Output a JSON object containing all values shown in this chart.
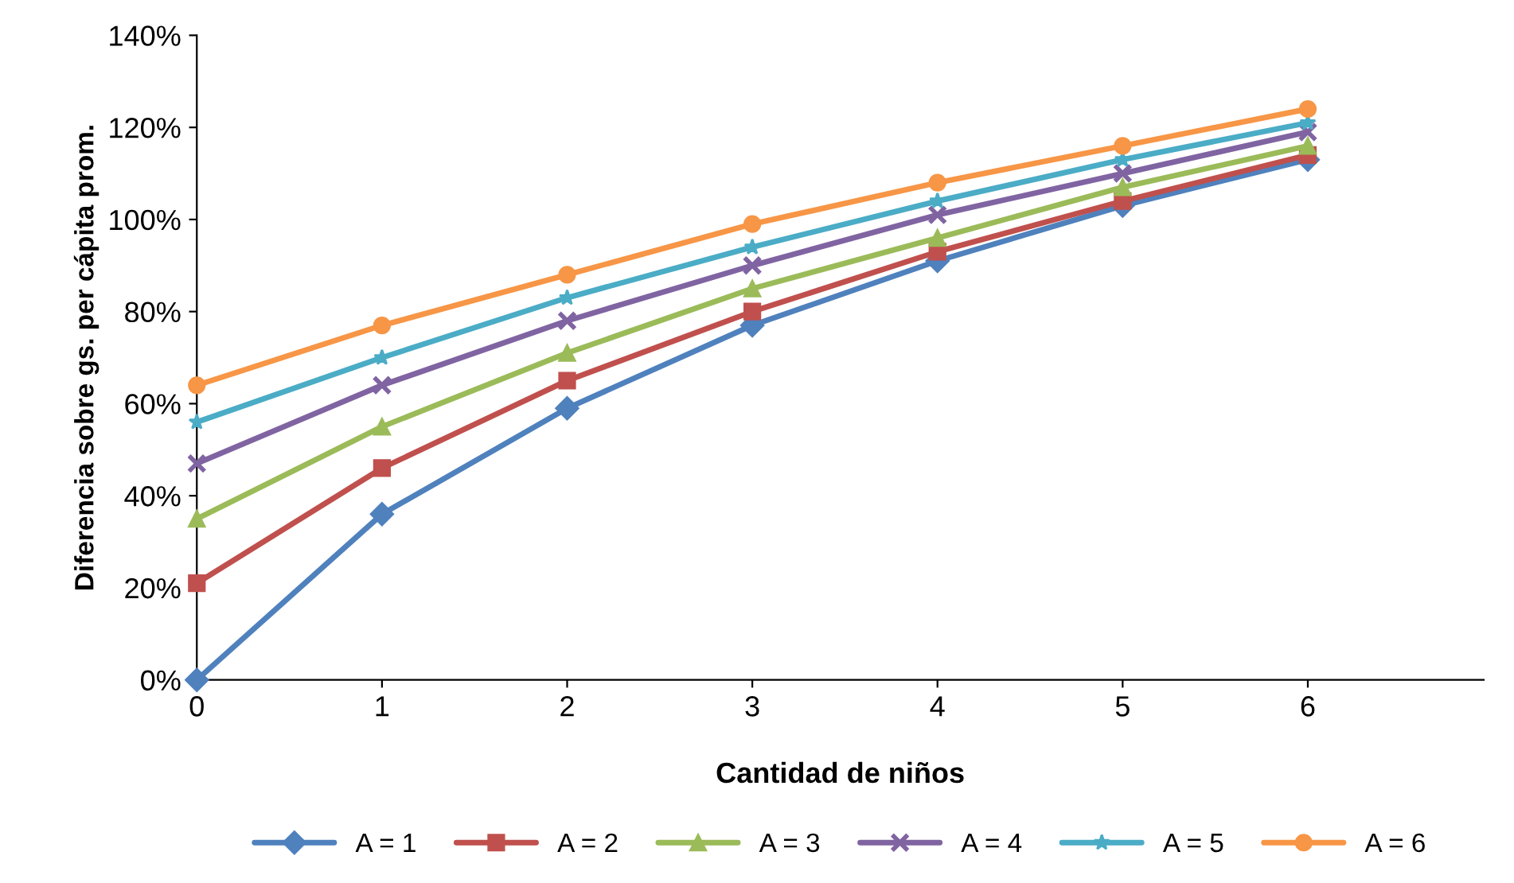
{
  "chart_data": {
    "type": "line",
    "xlabel": "Cantidad de niños",
    "ylabel": "Diferencia sobre gs. per cápita prom.",
    "x": [
      0,
      1,
      2,
      3,
      4,
      5,
      6
    ],
    "xlim": [
      0,
      6.95
    ],
    "xticks": [
      0,
      1,
      2,
      3,
      4,
      5,
      6
    ],
    "ylim": [
      0,
      140
    ],
    "yticks": [
      {
        "value": 0,
        "label": "0%"
      },
      {
        "value": 20,
        "label": "20%"
      },
      {
        "value": 40,
        "label": "40%"
      },
      {
        "value": 60,
        "label": "60%"
      },
      {
        "value": 80,
        "label": "80%"
      },
      {
        "value": 100,
        "label": "100%"
      },
      {
        "value": 120,
        "label": "120%"
      },
      {
        "value": 140,
        "label": "140%"
      }
    ],
    "grid": false,
    "legend": "bottom",
    "line_style": "solid",
    "series": [
      {
        "name": "A = 1",
        "color": "#4f81bd",
        "marker": "diamond",
        "values": [
          0,
          36,
          59,
          77,
          91,
          103,
          113
        ]
      },
      {
        "name": "A = 2",
        "color": "#c0504d",
        "marker": "square",
        "values": [
          21,
          46,
          65,
          80,
          93,
          104,
          114
        ]
      },
      {
        "name": "A = 3",
        "color": "#9bbb59",
        "marker": "triangle",
        "values": [
          35,
          55,
          71,
          85,
          96,
          107,
          116
        ]
      },
      {
        "name": "A = 4",
        "color": "#8064a2",
        "marker": "cross",
        "values": [
          47,
          64,
          78,
          90,
          101,
          110,
          119
        ]
      },
      {
        "name": "A = 5",
        "color": "#4bacc6",
        "marker": "star",
        "values": [
          56,
          70,
          83,
          94,
          104,
          113,
          121
        ]
      },
      {
        "name": "A = 6",
        "color": "#f79646",
        "marker": "circle",
        "values": [
          64,
          77,
          88,
          99,
          108,
          116,
          124
        ]
      }
    ]
  }
}
